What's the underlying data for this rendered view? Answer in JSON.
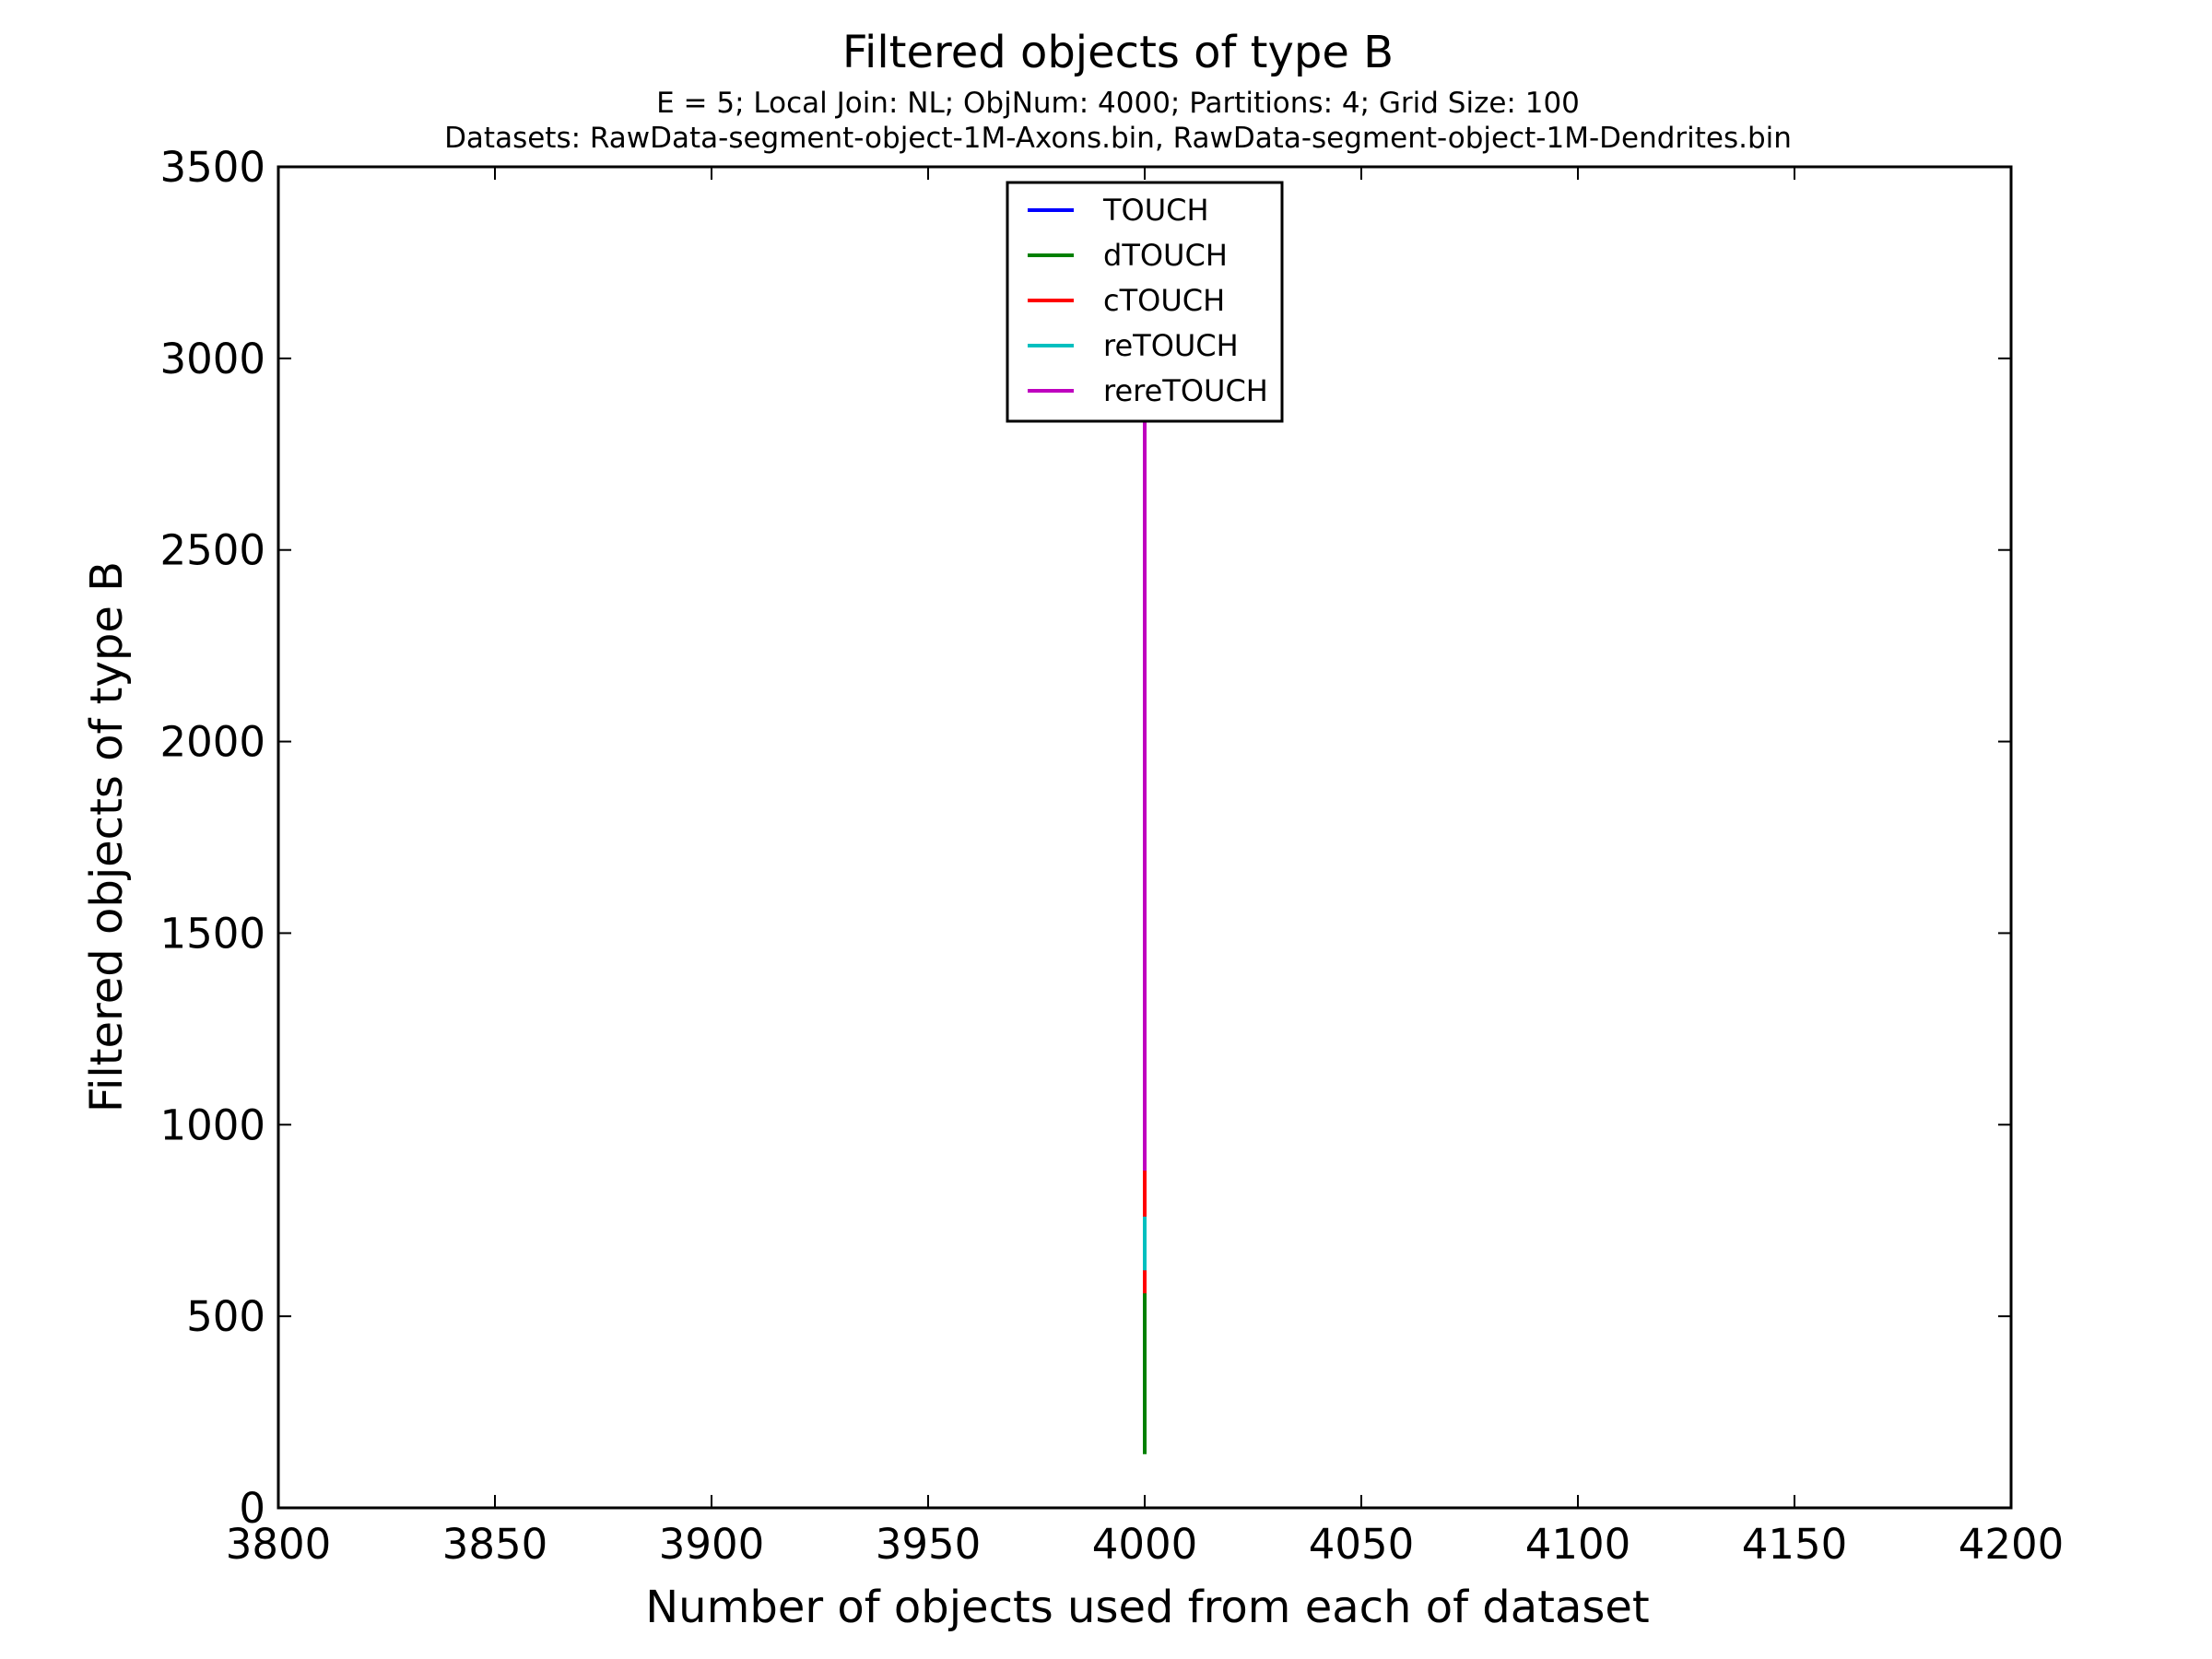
{
  "chart_data": {
    "type": "line",
    "title": "Filtered objects of type B",
    "subtitle_lines": [
      "E = 5; Local Join: NL; ObjNum: 4000; Partitions: 4; Grid Size: 100",
      "Datasets: RawData-segment-object-1M-Axons.bin, RawData-segment-object-1M-Dendrites.bin"
    ],
    "xlabel": "Number of objects used from each of dataset",
    "ylabel": "Filtered objects of type B",
    "xlim": [
      3800,
      4200
    ],
    "ylim": [
      0,
      3500
    ],
    "x_ticks": [
      3800,
      3850,
      3900,
      3950,
      4000,
      4050,
      4100,
      4150,
      4200
    ],
    "y_ticks": [
      0,
      500,
      1000,
      1500,
      2000,
      2500,
      3000,
      3500
    ],
    "x_tick_labels": [
      "3800",
      "3850",
      "3900",
      "3950",
      "4000",
      "4050",
      "4100",
      "4150",
      "4200"
    ],
    "y_tick_labels": [
      "0",
      "500",
      "1000",
      "1500",
      "2000",
      "2500",
      "3000",
      "3500"
    ],
    "grid": false,
    "legend_position": "top-center",
    "series": [
      {
        "name": "TOUCH",
        "color": "#0000ff",
        "x": [
          4000,
          4000
        ],
        "y": [
          580,
          1380
        ]
      },
      {
        "name": "dTOUCH",
        "color": "#008000",
        "x": [
          4000,
          4000
        ],
        "y": [
          140,
          570
        ]
      },
      {
        "name": "cTOUCH",
        "color": "#ff0000",
        "x": [
          4000,
          4000
        ],
        "y": [
          560,
          890
        ]
      },
      {
        "name": "reTOUCH",
        "color": "#00bfbf",
        "x": [
          4000,
          4000
        ],
        "y": [
          620,
          760
        ]
      },
      {
        "name": "rereTOUCH",
        "color": "#bf00bf",
        "x": [
          4000,
          4000
        ],
        "y": [
          880,
          2850
        ]
      }
    ]
  }
}
